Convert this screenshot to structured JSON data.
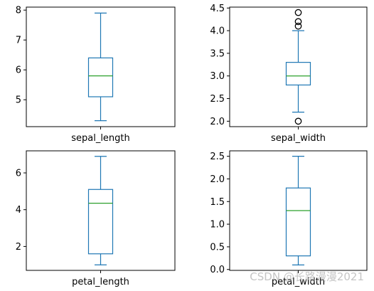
{
  "colors": {
    "box": "#1f77b4",
    "median": "#2ca02c",
    "axes": "#000000",
    "background": "#ffffff"
  },
  "watermark": "CSDN @长路漫漫2021",
  "chart_data": [
    {
      "type": "box",
      "xlabel": "sepal_length",
      "ylim": [
        4.1,
        8.1
      ],
      "yticks": [
        5,
        6,
        7,
        8
      ],
      "ytick_labels": [
        "5",
        "6",
        "7",
        "8"
      ],
      "box": {
        "whisker_low": 4.3,
        "q1": 5.1,
        "median": 5.8,
        "q3": 6.4,
        "whisker_high": 7.9
      },
      "outliers": []
    },
    {
      "type": "box",
      "xlabel": "sepal_width",
      "ylim": [
        1.88,
        4.52
      ],
      "yticks": [
        2.0,
        2.5,
        3.0,
        3.5,
        4.0,
        4.5
      ],
      "ytick_labels": [
        "2.0",
        "2.5",
        "3.0",
        "3.5",
        "4.0",
        "4.5"
      ],
      "box": {
        "whisker_low": 2.2,
        "q1": 2.8,
        "median": 3.0,
        "q3": 3.3,
        "whisker_high": 4.0
      },
      "outliers": [
        2.0,
        4.1,
        4.2,
        4.4
      ]
    },
    {
      "type": "box",
      "xlabel": "petal_length",
      "ylim": [
        0.7,
        7.2
      ],
      "yticks": [
        2,
        4,
        6
      ],
      "ytick_labels": [
        "2",
        "4",
        "6"
      ],
      "box": {
        "whisker_low": 1.0,
        "q1": 1.6,
        "median": 4.35,
        "q3": 5.1,
        "whisker_high": 6.9
      },
      "outliers": []
    },
    {
      "type": "box",
      "xlabel": "petal_width",
      "ylim": [
        -0.02,
        2.62
      ],
      "yticks": [
        0.0,
        0.5,
        1.0,
        1.5,
        2.0,
        2.5
      ],
      "ytick_labels": [
        "0.0",
        "0.5",
        "1.0",
        "1.5",
        "2.0",
        "2.5"
      ],
      "box": {
        "whisker_low": 0.1,
        "q1": 0.3,
        "median": 1.3,
        "q3": 1.8,
        "whisker_high": 2.5
      },
      "outliers": []
    }
  ]
}
